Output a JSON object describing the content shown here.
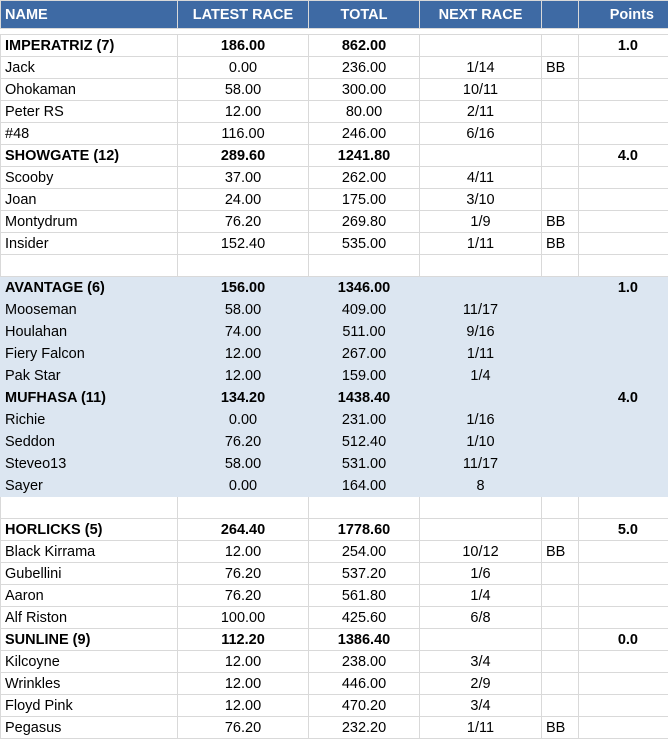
{
  "header": {
    "name": "NAME",
    "latest_race": "LATEST RACE",
    "total": "TOTAL",
    "next_race": "NEXT RACE",
    "flag": "",
    "points": "Points"
  },
  "rows": [
    {
      "type": "team",
      "shaded": false,
      "name": "IMPERATRIZ (7)",
      "latest": "186.00",
      "total": "862.00",
      "next": "",
      "flag": "",
      "points": "1.0"
    },
    {
      "type": "player",
      "shaded": false,
      "name": "Jack",
      "latest": "0.00",
      "total": "236.00",
      "next": "1/14",
      "flag": "BB",
      "points": ""
    },
    {
      "type": "player",
      "shaded": false,
      "name": "Ohokaman",
      "latest": "58.00",
      "total": "300.00",
      "next": "10/11",
      "flag": "",
      "points": ""
    },
    {
      "type": "player",
      "shaded": false,
      "name": "Peter RS",
      "latest": "12.00",
      "total": "80.00",
      "next": "2/11",
      "flag": "",
      "points": ""
    },
    {
      "type": "player",
      "shaded": false,
      "name": "#48",
      "latest": "116.00",
      "total": "246.00",
      "next": "6/16",
      "flag": "",
      "points": ""
    },
    {
      "type": "team",
      "shaded": false,
      "name": "SHOWGATE (12)",
      "latest": "289.60",
      "total": "1241.80",
      "next": "",
      "flag": "",
      "points": "4.0"
    },
    {
      "type": "player",
      "shaded": false,
      "name": "Scooby",
      "latest": "37.00",
      "total": "262.00",
      "next": "4/11",
      "flag": "",
      "points": ""
    },
    {
      "type": "player",
      "shaded": false,
      "name": "Joan",
      "latest": "24.00",
      "total": "175.00",
      "next": "3/10",
      "flag": "",
      "points": ""
    },
    {
      "type": "player",
      "shaded": false,
      "name": "Montydrum",
      "latest": "76.20",
      "total": "269.80",
      "next": "1/9",
      "flag": "BB",
      "points": ""
    },
    {
      "type": "player",
      "shaded": false,
      "name": "Insider",
      "latest": "152.40",
      "total": "535.00",
      "next": "1/11",
      "flag": "BB",
      "points": ""
    },
    {
      "type": "blank",
      "shaded": false,
      "name": "",
      "latest": "",
      "total": "",
      "next": "",
      "flag": "",
      "points": ""
    },
    {
      "type": "team",
      "shaded": true,
      "name": "AVANTAGE (6)",
      "latest": "156.00",
      "total": "1346.00",
      "next": "",
      "flag": "",
      "points": "1.0"
    },
    {
      "type": "player",
      "shaded": true,
      "name": "Mooseman",
      "latest": "58.00",
      "total": "409.00",
      "next": "11/17",
      "flag": "",
      "points": ""
    },
    {
      "type": "player",
      "shaded": true,
      "name": "Houlahan",
      "latest": "74.00",
      "total": "511.00",
      "next": "9/16",
      "flag": "",
      "points": ""
    },
    {
      "type": "player",
      "shaded": true,
      "name": "Fiery Falcon",
      "latest": "12.00",
      "total": "267.00",
      "next": "1/11",
      "flag": "",
      "points": ""
    },
    {
      "type": "player",
      "shaded": true,
      "name": "Pak Star",
      "latest": "12.00",
      "total": "159.00",
      "next": "1/4",
      "flag": "",
      "points": ""
    },
    {
      "type": "team",
      "shaded": true,
      "name": "MUFHASA (11)",
      "latest": "134.20",
      "total": "1438.40",
      "next": "",
      "flag": "",
      "points": "4.0"
    },
    {
      "type": "player",
      "shaded": true,
      "name": "Richie",
      "latest": "0.00",
      "total": "231.00",
      "next": "1/16",
      "flag": "",
      "points": ""
    },
    {
      "type": "player",
      "shaded": true,
      "name": "Seddon",
      "latest": "76.20",
      "total": "512.40",
      "next": "1/10",
      "flag": "",
      "points": ""
    },
    {
      "type": "player",
      "shaded": true,
      "name": "Steveo13",
      "latest": "58.00",
      "total": "531.00",
      "next": "11/17",
      "flag": "",
      "points": ""
    },
    {
      "type": "player",
      "shaded": true,
      "name": "Sayer",
      "latest": "0.00",
      "total": "164.00",
      "next": "8",
      "flag": "",
      "points": ""
    },
    {
      "type": "blank",
      "shaded": false,
      "name": "",
      "latest": "",
      "total": "",
      "next": "",
      "flag": "",
      "points": ""
    },
    {
      "type": "team",
      "shaded": false,
      "name": "HORLICKS (5)",
      "latest": "264.40",
      "total": "1778.60",
      "next": "",
      "flag": "",
      "points": "5.0"
    },
    {
      "type": "player",
      "shaded": false,
      "name": "Black Kirrama",
      "latest": "12.00",
      "total": "254.00",
      "next": "10/12",
      "flag": "BB",
      "points": ""
    },
    {
      "type": "player",
      "shaded": false,
      "name": "Gubellini",
      "latest": "76.20",
      "total": "537.20",
      "next": "1/6",
      "flag": "",
      "points": ""
    },
    {
      "type": "player",
      "shaded": false,
      "name": "Aaron",
      "latest": "76.20",
      "total": "561.80",
      "next": "1/4",
      "flag": "",
      "points": ""
    },
    {
      "type": "player",
      "shaded": false,
      "name": "Alf Riston",
      "latest": "100.00",
      "total": "425.60",
      "next": "6/8",
      "flag": "",
      "points": ""
    },
    {
      "type": "team",
      "shaded": false,
      "name": "SUNLINE (9)",
      "latest": "112.20",
      "total": "1386.40",
      "next": "",
      "flag": "",
      "points": "0.0"
    },
    {
      "type": "player",
      "shaded": false,
      "name": "Kilcoyne",
      "latest": "12.00",
      "total": "238.00",
      "next": "3/4",
      "flag": "",
      "points": ""
    },
    {
      "type": "player",
      "shaded": false,
      "name": "Wrinkles",
      "latest": "12.00",
      "total": "446.00",
      "next": "2/9",
      "flag": "",
      "points": ""
    },
    {
      "type": "player",
      "shaded": false,
      "name": "Floyd Pink",
      "latest": "12.00",
      "total": "470.20",
      "next": "3/4",
      "flag": "",
      "points": ""
    },
    {
      "type": "player",
      "shaded": false,
      "name": "Pegasus",
      "latest": "76.20",
      "total": "232.20",
      "next": "1/11",
      "flag": "BB",
      "points": ""
    }
  ]
}
